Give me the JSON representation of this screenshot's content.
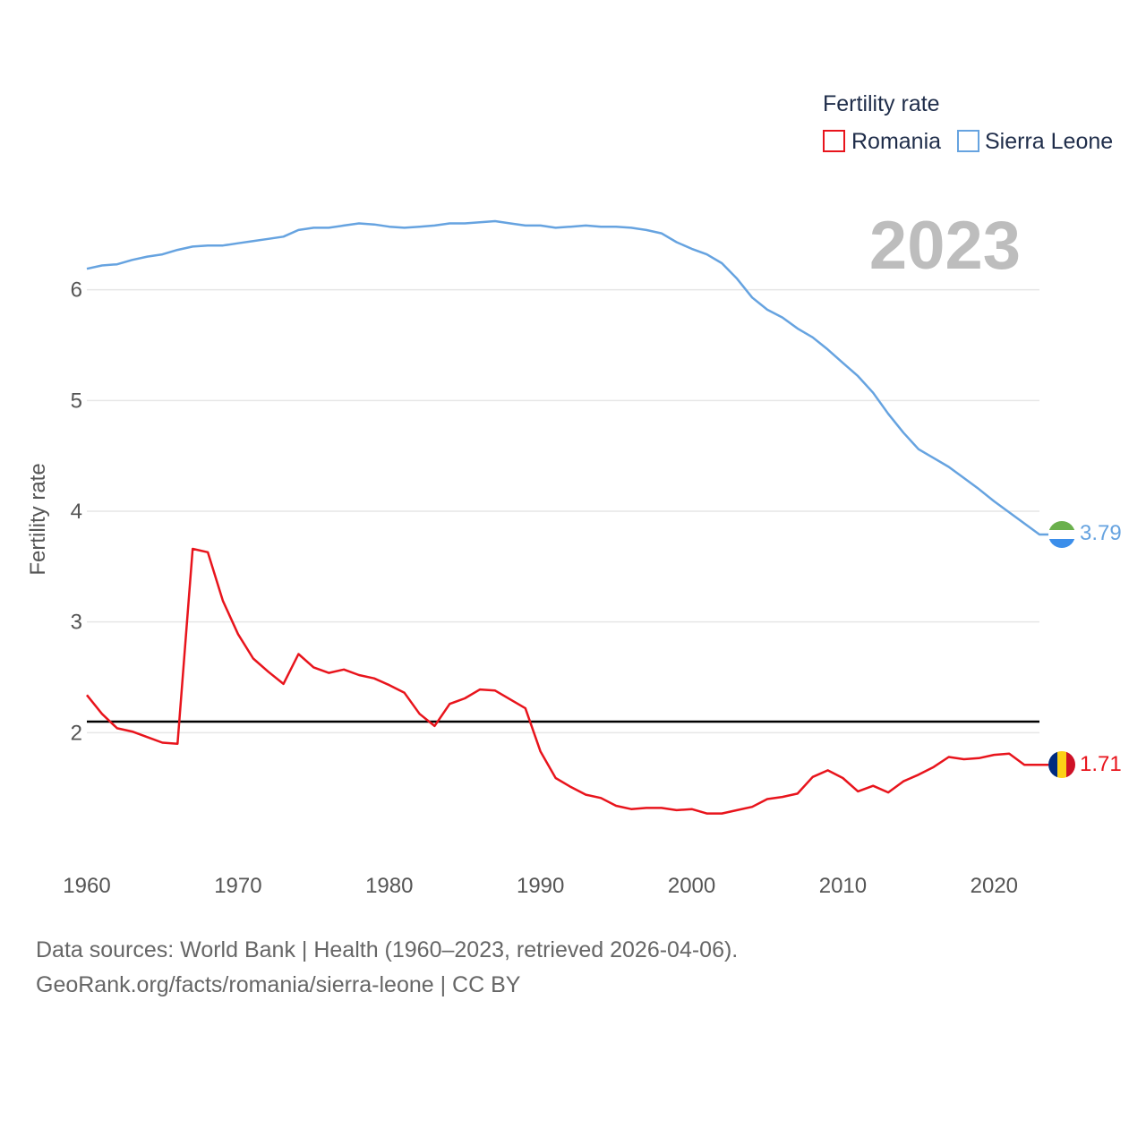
{
  "chart_data": {
    "type": "line",
    "title": "",
    "legend_title": "Fertility rate",
    "ylabel": "Fertility rate",
    "xlabel": "",
    "year_label": "2023",
    "xlim": [
      1960,
      2023
    ],
    "ylim": [
      1,
      7
    ],
    "x_ticks": [
      1960,
      1970,
      1980,
      1990,
      2000,
      2010,
      2020
    ],
    "y_ticks": [
      2,
      3,
      4,
      5,
      6
    ],
    "reference_line": 2.1,
    "legend_position": "top-right",
    "x": [
      1960,
      1961,
      1962,
      1963,
      1964,
      1965,
      1966,
      1967,
      1968,
      1969,
      1970,
      1971,
      1972,
      1973,
      1974,
      1975,
      1976,
      1977,
      1978,
      1979,
      1980,
      1981,
      1982,
      1983,
      1984,
      1985,
      1986,
      1987,
      1988,
      1989,
      1990,
      1991,
      1992,
      1993,
      1994,
      1995,
      1996,
      1997,
      1998,
      1999,
      2000,
      2001,
      2002,
      2003,
      2004,
      2005,
      2006,
      2007,
      2008,
      2009,
      2010,
      2011,
      2012,
      2013,
      2014,
      2015,
      2016,
      2017,
      2018,
      2019,
      2020,
      2021,
      2022,
      2023
    ],
    "series": [
      {
        "name": "Romania",
        "color": "#e8141c",
        "end_label": "1.71",
        "values": [
          2.34,
          2.17,
          2.04,
          2.01,
          1.96,
          1.91,
          1.9,
          3.66,
          3.63,
          3.19,
          2.89,
          2.67,
          2.55,
          2.44,
          2.71,
          2.59,
          2.54,
          2.57,
          2.52,
          2.49,
          2.43,
          2.36,
          2.17,
          2.06,
          2.26,
          2.31,
          2.39,
          2.38,
          2.3,
          2.22,
          1.83,
          1.59,
          1.51,
          1.44,
          1.41,
          1.34,
          1.31,
          1.32,
          1.32,
          1.3,
          1.31,
          1.27,
          1.27,
          1.3,
          1.33,
          1.4,
          1.42,
          1.45,
          1.6,
          1.66,
          1.59,
          1.47,
          1.52,
          1.46,
          1.56,
          1.62,
          1.69,
          1.78,
          1.76,
          1.77,
          1.8,
          1.81,
          1.71,
          1.71
        ]
      },
      {
        "name": "Sierra Leone",
        "color": "#66a3e0",
        "end_label": "3.79",
        "values": [
          6.19,
          6.22,
          6.23,
          6.27,
          6.3,
          6.32,
          6.36,
          6.39,
          6.4,
          6.4,
          6.42,
          6.44,
          6.46,
          6.48,
          6.54,
          6.56,
          6.56,
          6.58,
          6.6,
          6.59,
          6.57,
          6.56,
          6.57,
          6.58,
          6.6,
          6.6,
          6.61,
          6.62,
          6.6,
          6.58,
          6.58,
          6.56,
          6.57,
          6.58,
          6.57,
          6.57,
          6.56,
          6.54,
          6.51,
          6.43,
          6.37,
          6.32,
          6.24,
          6.1,
          5.93,
          5.82,
          5.75,
          5.65,
          5.57,
          5.46,
          5.34,
          5.22,
          5.07,
          4.88,
          4.71,
          4.56,
          4.48,
          4.4,
          4.3,
          4.2,
          4.09,
          3.99,
          3.89,
          3.79
        ]
      }
    ]
  },
  "footer": {
    "line1": "Data sources: World Bank | Health (1960–2023, retrieved 2026-04-06).",
    "line2": "GeoRank.org/facts/romania/sierra-leone | CC BY"
  }
}
